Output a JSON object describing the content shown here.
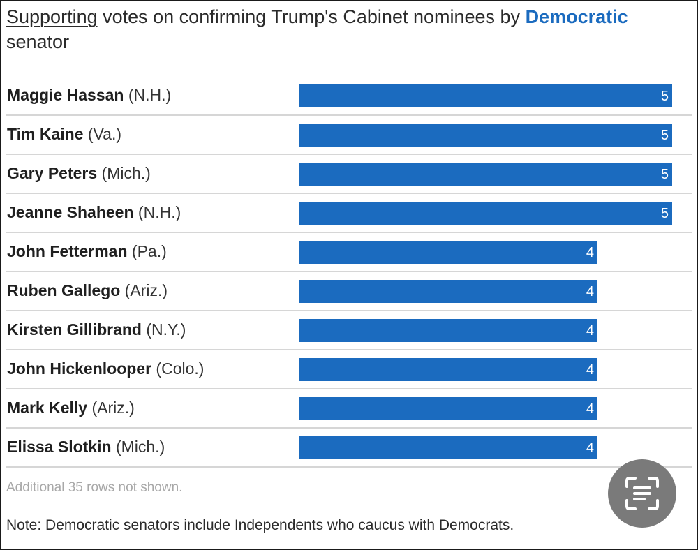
{
  "title": {
    "part1": "Supporting",
    "part2": " votes on confirming Trump's Cabinet nominees by ",
    "part3": "Democratic",
    "part4": " senator"
  },
  "colors": {
    "bar": "#1b6bbf",
    "highlight": "#1b6bbf"
  },
  "chart_data": {
    "type": "bar",
    "orientation": "horizontal",
    "title": "Supporting votes on confirming Trump's Cabinet nominees by Democratic senator",
    "xlim": [
      0,
      5
    ],
    "rows": [
      {
        "name": "Maggie Hassan",
        "state": "(N.H.)",
        "value": 5
      },
      {
        "name": "Tim Kaine",
        "state": "(Va.)",
        "value": 5
      },
      {
        "name": "Gary Peters",
        "state": "(Mich.)",
        "value": 5
      },
      {
        "name": "Jeanne Shaheen",
        "state": "(N.H.)",
        "value": 5
      },
      {
        "name": "John Fetterman",
        "state": "(Pa.)",
        "value": 4
      },
      {
        "name": "Ruben Gallego",
        "state": "(Ariz.)",
        "value": 4
      },
      {
        "name": "Kirsten Gillibrand",
        "state": "(N.Y.)",
        "value": 4
      },
      {
        "name": "John Hickenlooper",
        "state": "(Colo.)",
        "value": 4
      },
      {
        "name": "Mark Kelly",
        "state": "(Ariz.)",
        "value": 4
      },
      {
        "name": "Elissa Slotkin",
        "state": "(Mich.)",
        "value": 4
      }
    ]
  },
  "footnote": "Additional 35 rows not shown.",
  "note": "Note: Democratic senators include Independents who caucus with Democrats.",
  "scan_icon": "text-scan-icon"
}
